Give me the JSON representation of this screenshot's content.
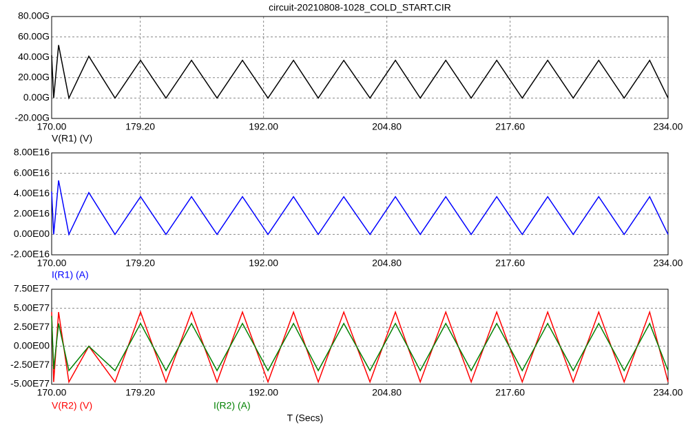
{
  "chart_data": [
    {
      "type": "line",
      "title": "circuit-20210808-1028_COLD_START.CIR",
      "x": [
        170,
        170.21,
        170.72,
        171.79,
        173.86,
        176.58,
        179.23,
        181.87,
        184.52,
        187.17,
        189.81,
        192.46,
        195.11,
        197.68,
        200.33,
        203.05,
        205.69,
        208.27,
        210.92,
        213.56,
        216.21,
        218.86,
        221.5,
        224.15,
        226.8,
        229.44,
        232.09,
        234
      ],
      "series": [
        {
          "name": "V(R1) (V)",
          "color": "#000000",
          "values": [
            42000000000.0,
            0,
            52000000000.0,
            0,
            41000000000.0,
            0,
            37000000000.0,
            0,
            37000000000.0,
            0,
            37000000000.0,
            0,
            37000000000.0,
            0,
            37000000000.0,
            0,
            37000000000.0,
            0,
            37000000000.0,
            0,
            37000000000.0,
            0,
            37000000000.0,
            0,
            37000000000.0,
            0,
            37000000000.0,
            0
          ]
        }
      ],
      "xlim": [
        170,
        234
      ],
      "xticks": [
        {
          "value": 170,
          "label": "170.00"
        },
        {
          "value": 179.2,
          "label": "179.20"
        },
        {
          "value": 192,
          "label": "192.00"
        },
        {
          "value": 204.8,
          "label": "204.80"
        },
        {
          "value": 217.6,
          "label": "217.60"
        },
        {
          "value": 234,
          "label": "234.00"
        }
      ],
      "ylim": [
        -20000000000.0,
        80000000000.0
      ],
      "yticks": [
        {
          "value": -20000000000.0,
          "label": "-20.00G"
        },
        {
          "value": 0,
          "label": "0.00G"
        },
        {
          "value": 20000000000.0,
          "label": "20.00G"
        },
        {
          "value": 40000000000.0,
          "label": "40.00G"
        },
        {
          "value": 60000000000.0,
          "label": "60.00G"
        },
        {
          "value": 80000000000.0,
          "label": "80.00G"
        }
      ],
      "grid": true
    },
    {
      "type": "line",
      "x": [
        170,
        170.21,
        170.72,
        171.79,
        173.86,
        176.58,
        179.23,
        181.87,
        184.52,
        187.17,
        189.81,
        192.46,
        195.11,
        197.68,
        200.33,
        203.05,
        205.69,
        208.27,
        210.92,
        213.56,
        216.21,
        218.86,
        221.5,
        224.15,
        226.8,
        229.44,
        232.09,
        234
      ],
      "series": [
        {
          "name": "I(R1) (A)",
          "color": "#0000ff",
          "values": [
            4.2e+16,
            0,
            5.3e+16,
            0,
            4.1e+16,
            0,
            3.7e+16,
            0,
            3.7e+16,
            0,
            3.7e+16,
            0,
            3.7e+16,
            0,
            3.7e+16,
            0,
            3.7e+16,
            0,
            3.7e+16,
            0,
            3.7e+16,
            0,
            3.7e+16,
            0,
            3.7e+16,
            0,
            3.7e+16,
            0
          ]
        }
      ],
      "xlim": [
        170,
        234
      ],
      "xticks": [
        {
          "value": 170,
          "label": "170.00"
        },
        {
          "value": 179.2,
          "label": "179.20"
        },
        {
          "value": 192,
          "label": "192.00"
        },
        {
          "value": 204.8,
          "label": "204.80"
        },
        {
          "value": 217.6,
          "label": "217.60"
        },
        {
          "value": 234,
          "label": "234.00"
        }
      ],
      "ylim": [
        -2e+16,
        8e+16
      ],
      "yticks": [
        {
          "value": -2e+16,
          "label": "-2.00E16"
        },
        {
          "value": 0,
          "label": "0.00E00"
        },
        {
          "value": 2e+16,
          "label": "2.00E16"
        },
        {
          "value": 4e+16,
          "label": "4.00E16"
        },
        {
          "value": 6e+16,
          "label": "6.00E16"
        },
        {
          "value": 8e+16,
          "label": "8.00E16"
        }
      ],
      "grid": true
    },
    {
      "type": "line",
      "xlabel": "T (Secs)",
      "x": [
        170,
        170.21,
        170.72,
        171.79,
        173.86,
        176.58,
        179.23,
        181.87,
        184.52,
        187.17,
        189.81,
        192.46,
        195.11,
        197.68,
        200.33,
        203.05,
        205.69,
        208.27,
        210.92,
        213.56,
        216.21,
        218.86,
        221.5,
        224.15,
        226.8,
        229.44,
        232.09,
        234
      ],
      "series": [
        {
          "name": "V(R2) (V)",
          "color": "#ff0000",
          "values": [
            4.5e+77,
            -4.7e+77,
            4.5e+77,
            -4.7e+77,
            0,
            -4.7e+77,
            4.5e+77,
            -4.7e+77,
            4.5e+77,
            -4.7e+77,
            4.5e+77,
            -4.7e+77,
            4.5e+77,
            -4.7e+77,
            4.5e+77,
            -4.7e+77,
            4.5e+77,
            -4.7e+77,
            4.5e+77,
            -4.7e+77,
            4.5e+77,
            -4.7e+77,
            4.5e+77,
            -4.7e+77,
            4.5e+77,
            -4.7e+77,
            4.5e+77,
            -4.7e+77
          ]
        },
        {
          "name": "I(R2) (A)",
          "color": "#008000",
          "values": [
            4e+77,
            -3e+77,
            3e+77,
            -3.2e+77,
            0,
            -3.2e+77,
            3e+77,
            -3.2e+77,
            3e+77,
            -3.2e+77,
            3e+77,
            -3.2e+77,
            3e+77,
            -3.2e+77,
            3e+77,
            -3.2e+77,
            3e+77,
            -3.2e+77,
            3e+77,
            -3.2e+77,
            3e+77,
            -3.2e+77,
            3e+77,
            -3.2e+77,
            3e+77,
            -3.2e+77,
            3e+77,
            -3.2e+77
          ]
        }
      ],
      "xlim": [
        170,
        234
      ],
      "xticks": [
        {
          "value": 170,
          "label": "170.00"
        },
        {
          "value": 179.2,
          "label": "179.20"
        },
        {
          "value": 192,
          "label": "192.00"
        },
        {
          "value": 204.8,
          "label": "204.80"
        },
        {
          "value": 217.6,
          "label": "217.60"
        },
        {
          "value": 234,
          "label": "234.00"
        }
      ],
      "ylim": [
        -5e+77,
        7.5e+77
      ],
      "yticks": [
        {
          "value": -5e+77,
          "label": "-5.00E77"
        },
        {
          "value": -2.5e+77,
          "label": "-2.50E77"
        },
        {
          "value": 0,
          "label": "0.00E00"
        },
        {
          "value": 2.5e+77,
          "label": "2.50E77"
        },
        {
          "value": 5e+77,
          "label": "5.00E77"
        },
        {
          "value": 7.5e+77,
          "label": "7.50E77"
        }
      ],
      "grid": true
    }
  ]
}
